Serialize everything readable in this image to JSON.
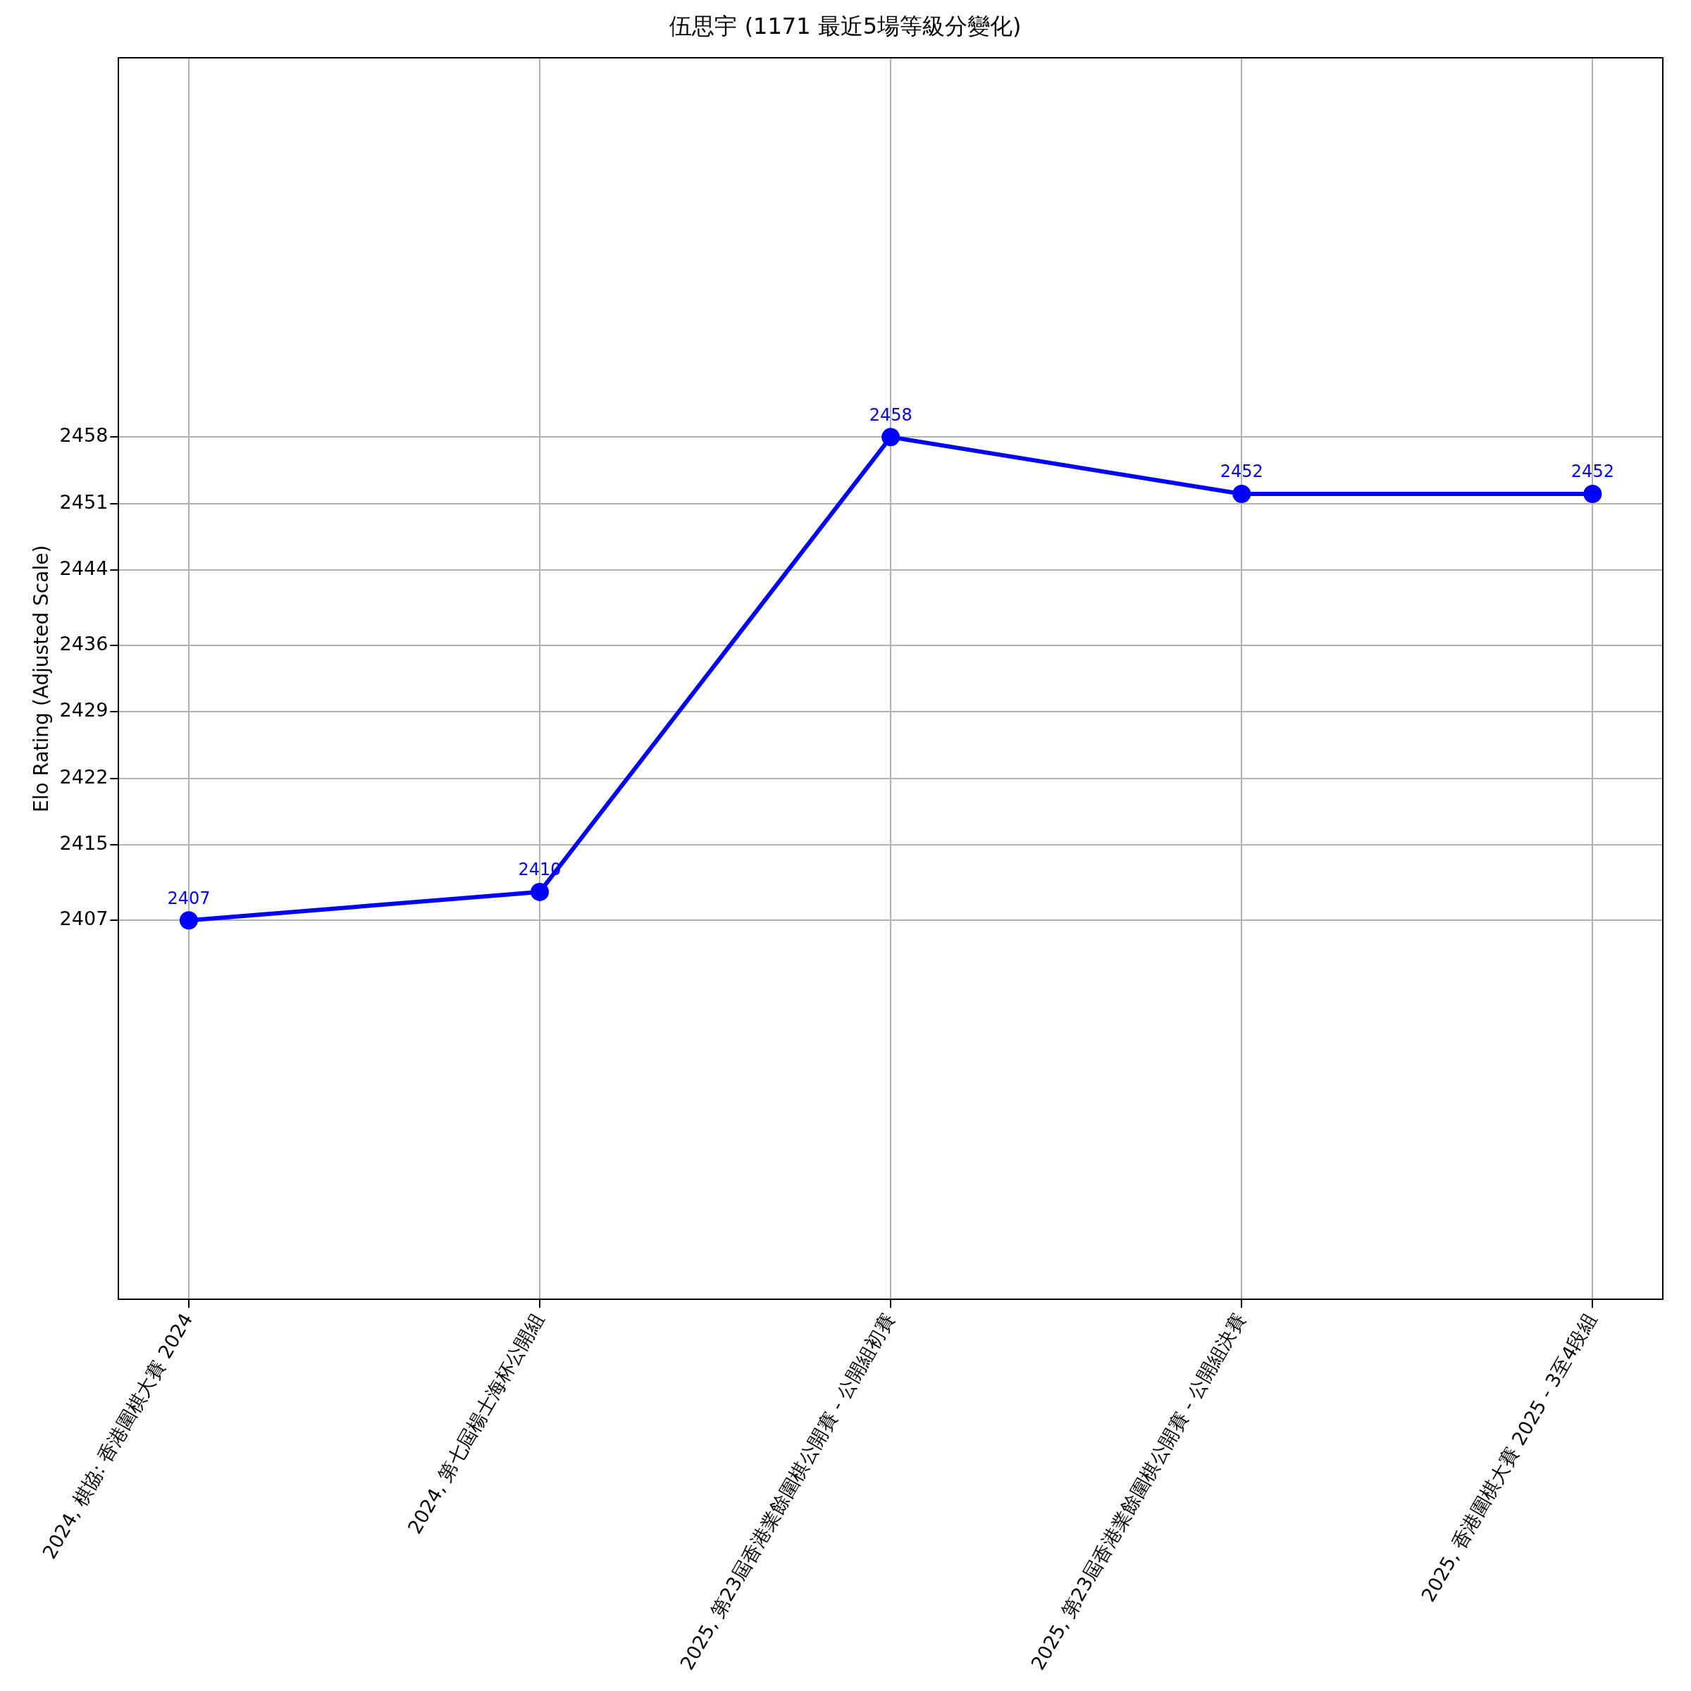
{
  "chart_data": {
    "type": "line",
    "title": "伍思宇 (1171 最近5場等級分變化)",
    "ylabel": "Elo Rating (Adjusted Scale)",
    "categories": [
      "2024, 棋協: 香港圍棋大賽 2024",
      "2024, 第七屆楊士海杯公開組",
      "2025, 第23屆香港業餘圍棋公開賽 - 公開組初賽",
      "2025, 第23屆香港業餘圍棋公開賽 - 公開組決賽",
      "2025, 香港圍棋大賽 2025 - 3至4段組"
    ],
    "series": [
      {
        "color": "#0000ff",
        "values": [
          2407,
          2410,
          2458,
          2452,
          2452
        ]
      }
    ],
    "ylim": [
      2367,
      2498
    ],
    "yticks": [
      2407,
      2415,
      2422,
      2429,
      2436,
      2444,
      2451,
      2458
    ],
    "grid": true,
    "legend": false,
    "marker": "circle",
    "line_style": "solid",
    "data_labels": true
  }
}
